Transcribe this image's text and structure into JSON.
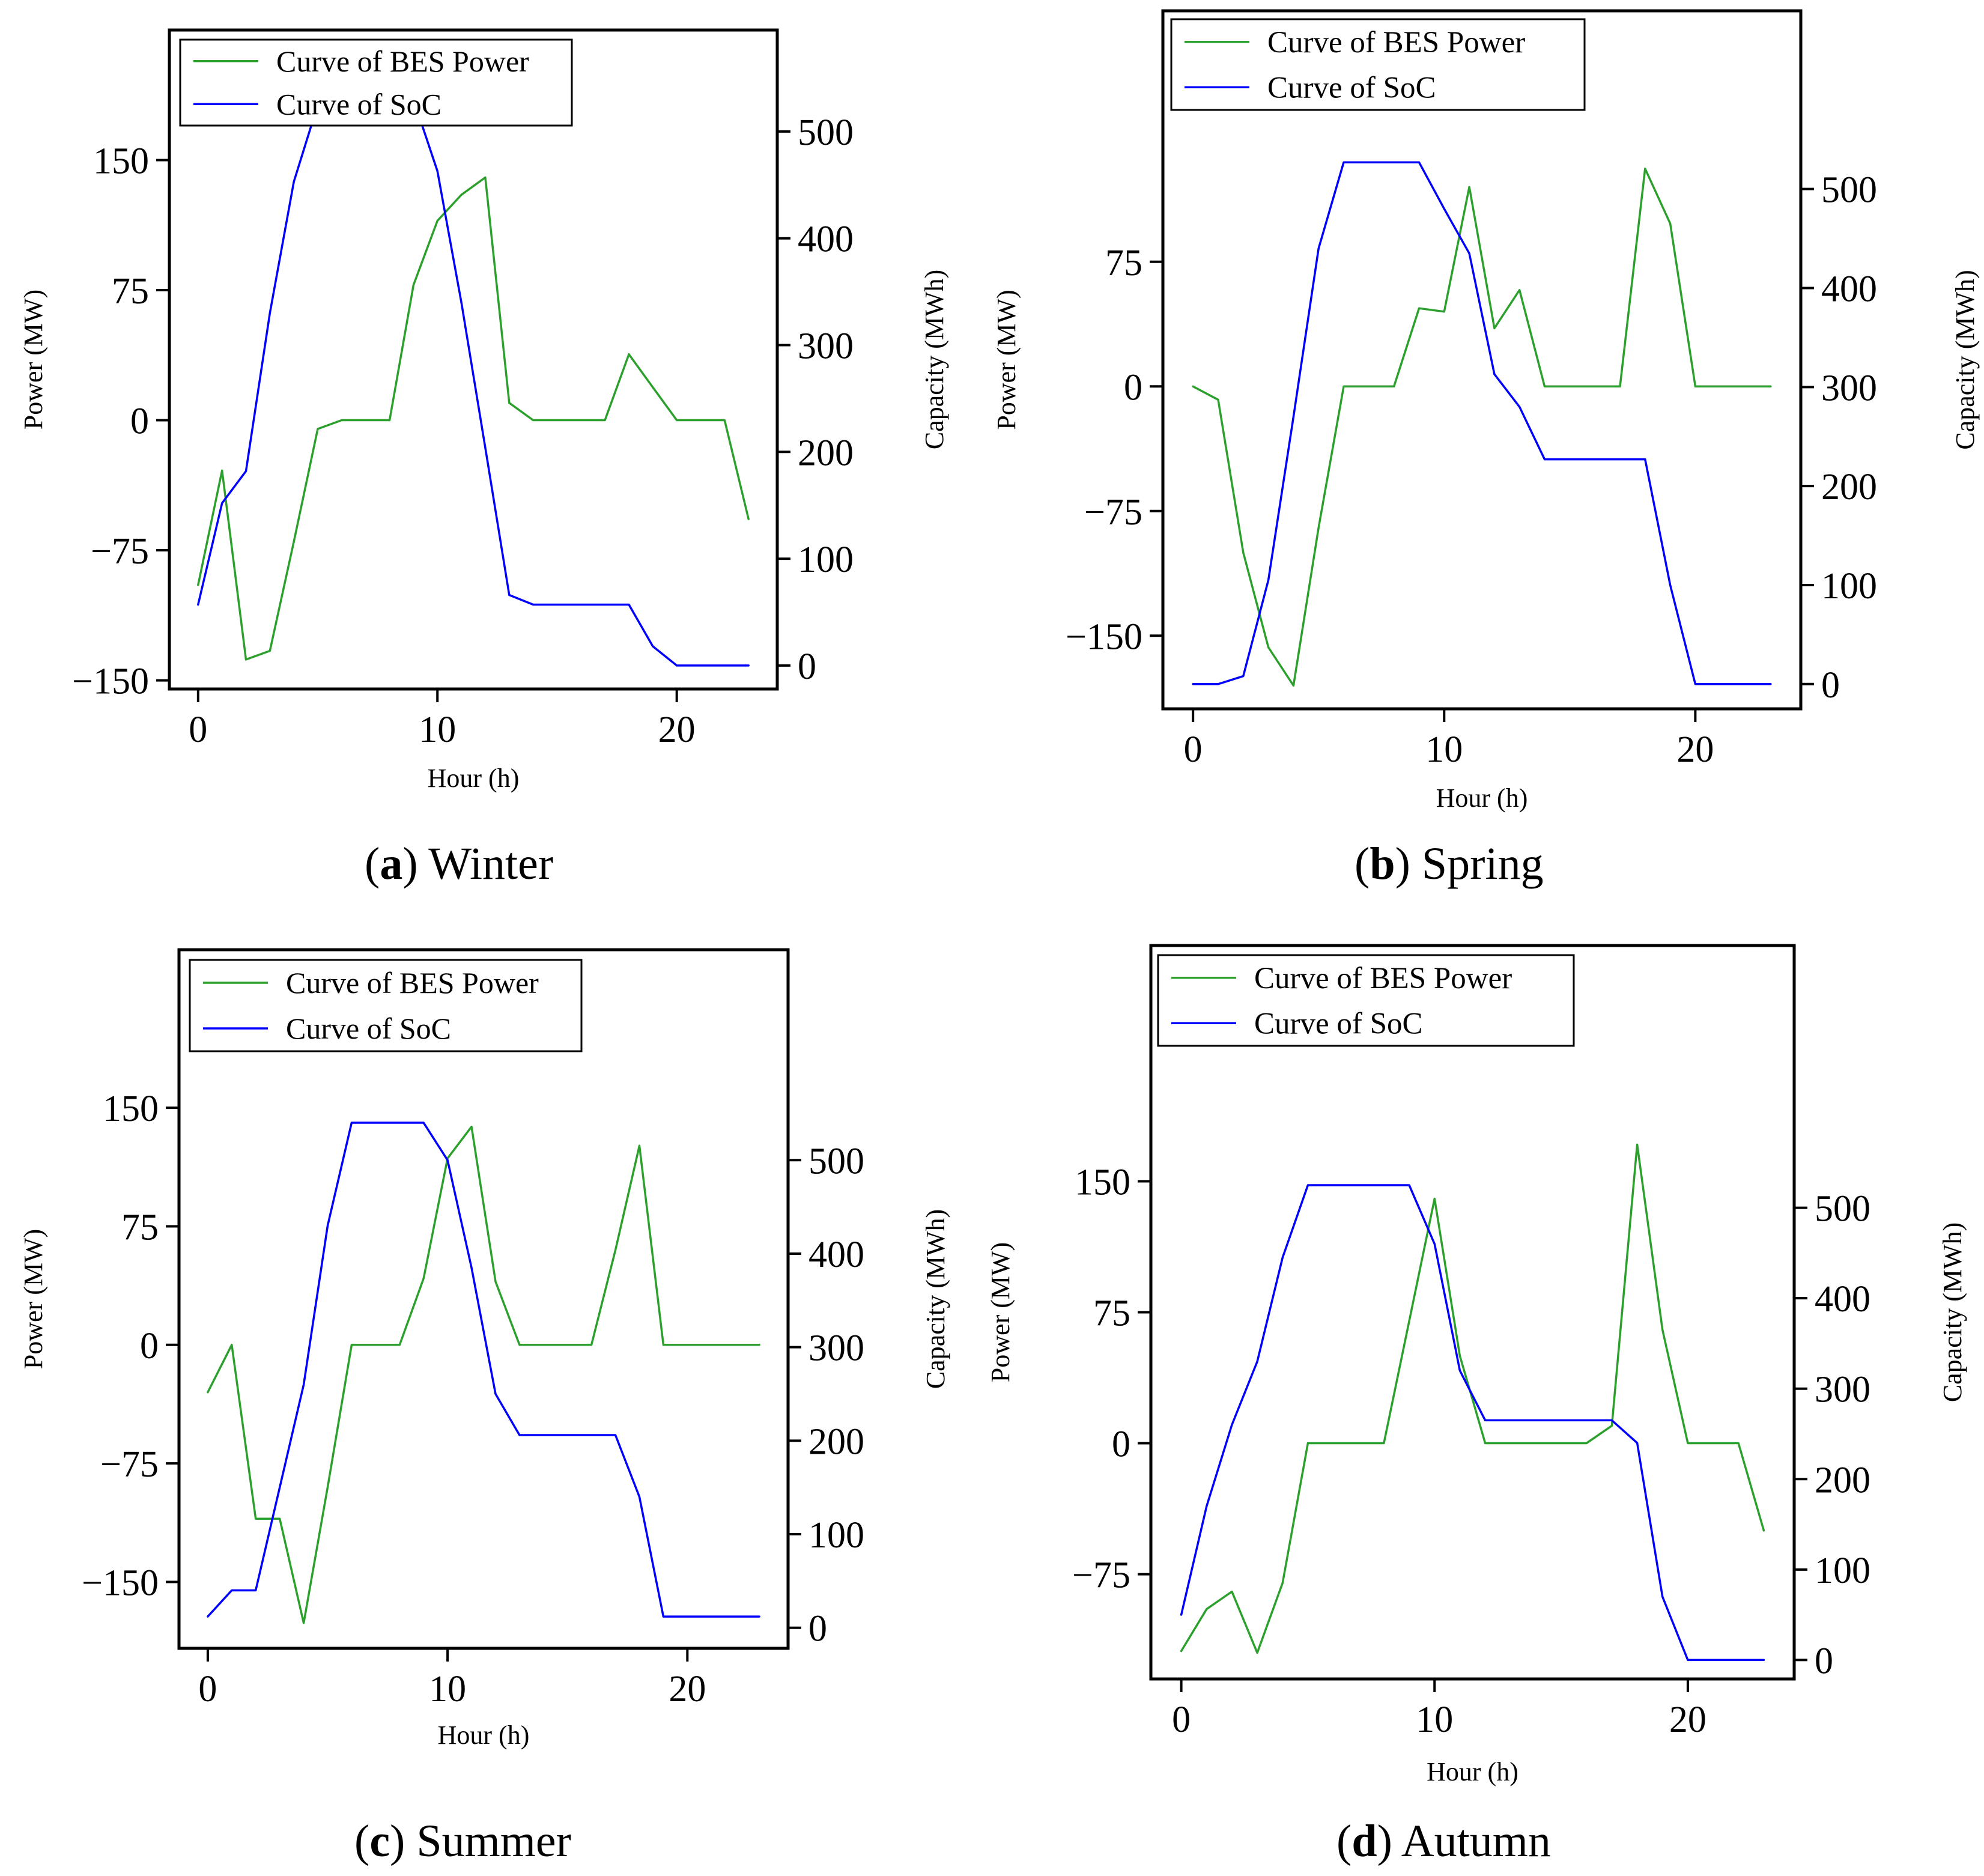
{
  "colors": {
    "power": "#2ca02c",
    "soc": "#0000ff",
    "axis": "#000000",
    "background": "#ffffff"
  },
  "axis_labels": {
    "x": "Hour (h)",
    "y_left": "Power (MW)",
    "y_right": "Capacity (MWh)"
  },
  "legend": {
    "power": "Curve of BES Power",
    "soc": "Curve of SoC"
  },
  "chart_data": [
    {
      "type": "line",
      "panel": "a",
      "title": "Winter",
      "caption_letter": "a",
      "xlabel": "Hour (h)",
      "ylabel": "Power (MW)",
      "ylabel_right": "Capacity (MWh)",
      "xlim": [
        -1.2,
        24.2
      ],
      "ylim_left": [
        -155,
        225
      ],
      "ylim_right": [
        -22,
        595
      ],
      "x_ticks": [
        0,
        10,
        20
      ],
      "y_left_ticks": [
        -150,
        -75,
        0,
        75,
        150
      ],
      "y_right_ticks": [
        0,
        100,
        200,
        300,
        400,
        500
      ],
      "legend_position": "top-left",
      "x": [
        0,
        1,
        2,
        3,
        4,
        5,
        6,
        7,
        8,
        9,
        10,
        11,
        12,
        13,
        14,
        15,
        16,
        17,
        18,
        19,
        20,
        21,
        22,
        23
      ],
      "series": [
        {
          "name": "Curve of BES Power",
          "axis": "left",
          "values": [
            -95,
            -29,
            -138,
            -133,
            -70,
            -5,
            0,
            0,
            0,
            78,
            115,
            130,
            140,
            10,
            0,
            0,
            0,
            0,
            38,
            19,
            0,
            0,
            0,
            -57
          ]
        },
        {
          "name": "Curve of SoC",
          "axis": "right",
          "values": [
            57,
            152,
            182,
            330,
            453,
            525,
            530,
            530,
            530,
            530,
            463,
            340,
            204,
            66,
            57,
            57,
            57,
            57,
            57,
            18,
            0,
            0,
            0,
            0
          ]
        }
      ]
    },
    {
      "type": "line",
      "panel": "b",
      "title": "Spring",
      "caption_letter": "b",
      "xlabel": "Hour (h)",
      "ylabel": "Power (MW)",
      "ylabel_right": "Capacity (MWh)",
      "xlim": [
        -1.2,
        24.2
      ],
      "ylim_left": [
        -194,
        226
      ],
      "ylim_right": [
        -25,
        680
      ],
      "x_ticks": [
        0,
        10,
        20
      ],
      "y_left_ticks": [
        -150,
        -75,
        0,
        75
      ],
      "y_right_ticks": [
        0,
        100,
        200,
        300,
        400,
        500
      ],
      "legend_position": "top-left",
      "x": [
        0,
        1,
        2,
        3,
        4,
        5,
        6,
        7,
        8,
        9,
        10,
        11,
        12,
        13,
        14,
        15,
        16,
        17,
        18,
        19,
        20,
        21,
        22,
        23
      ],
      "series": [
        {
          "name": "Curve of BES Power",
          "axis": "left",
          "values": [
            0,
            -8,
            -100,
            -157,
            -180,
            -85,
            0,
            0,
            0,
            47,
            45,
            120,
            35,
            58,
            0,
            0,
            0,
            0,
            131,
            98,
            0,
            0,
            0,
            0
          ]
        },
        {
          "name": "Curve of SoC",
          "axis": "right",
          "values": [
            0,
            0,
            8,
            105,
            270,
            440,
            527,
            527,
            527,
            527,
            480,
            435,
            313,
            280,
            227,
            227,
            227,
            227,
            227,
            100,
            0,
            0,
            0,
            0
          ]
        }
      ]
    },
    {
      "type": "line",
      "panel": "c",
      "title": "Summer",
      "caption_letter": "c",
      "xlabel": "Hour (h)",
      "ylabel": "Power (MW)",
      "ylabel_right": "Capacity (MWh)",
      "xlim": [
        -1.2,
        24.2
      ],
      "ylim_left": [
        -192,
        250
      ],
      "ylim_right": [
        -22,
        725
      ],
      "x_ticks": [
        0,
        10,
        20
      ],
      "y_left_ticks": [
        -150,
        -75,
        0,
        75,
        150
      ],
      "y_right_ticks": [
        0,
        100,
        200,
        300,
        400,
        500
      ],
      "legend_position": "top-left",
      "x": [
        0,
        1,
        2,
        3,
        4,
        5,
        6,
        7,
        8,
        9,
        10,
        11,
        12,
        13,
        14,
        15,
        16,
        17,
        18,
        19,
        20,
        21,
        22,
        23
      ],
      "series": [
        {
          "name": "Curve of BES Power",
          "axis": "left",
          "values": [
            -30,
            0,
            -110,
            -110,
            -176,
            -90,
            0,
            0,
            0,
            42,
            118,
            138,
            40,
            0,
            0,
            0,
            0,
            60,
            126,
            0,
            0,
            0,
            0,
            0
          ]
        },
        {
          "name": "Curve of SoC",
          "axis": "right",
          "values": [
            12,
            40,
            40,
            150,
            260,
            430,
            540,
            540,
            540,
            540,
            500,
            385,
            250,
            206,
            206,
            206,
            206,
            206,
            140,
            12,
            12,
            12,
            12,
            12
          ]
        }
      ]
    },
    {
      "type": "line",
      "panel": "d",
      "title": "Autumn",
      "caption_letter": "d",
      "xlabel": "Hour (h)",
      "ylabel": "Power (MW)",
      "ylabel_right": "Capacity (MWh)",
      "xlim": [
        -1.2,
        24.2
      ],
      "ylim_left": [
        -135,
        285
      ],
      "ylim_right": [
        -21,
        790
      ],
      "x_ticks": [
        0,
        10,
        20
      ],
      "y_left_ticks": [
        -75,
        0,
        75,
        150
      ],
      "y_right_ticks": [
        0,
        100,
        200,
        300,
        400,
        500
      ],
      "legend_position": "top-left",
      "x": [
        0,
        1,
        2,
        3,
        4,
        5,
        6,
        7,
        8,
        9,
        10,
        11,
        12,
        13,
        14,
        15,
        16,
        17,
        18,
        19,
        20,
        21,
        22,
        23
      ],
      "series": [
        {
          "name": "Curve of BES Power",
          "axis": "left",
          "values": [
            -119,
            -95,
            -85,
            -120,
            -80,
            0,
            0,
            0,
            0,
            70,
            140,
            50,
            0,
            0,
            0,
            0,
            0,
            10,
            171,
            65,
            0,
            0,
            0,
            -50
          ]
        },
        {
          "name": "Curve of SoC",
          "axis": "right",
          "values": [
            50,
            170,
            260,
            330,
            445,
            525,
            525,
            525,
            525,
            525,
            460,
            320,
            265,
            265,
            265,
            265,
            265,
            265,
            240,
            70,
            0,
            0,
            0,
            0
          ]
        }
      ]
    }
  ]
}
